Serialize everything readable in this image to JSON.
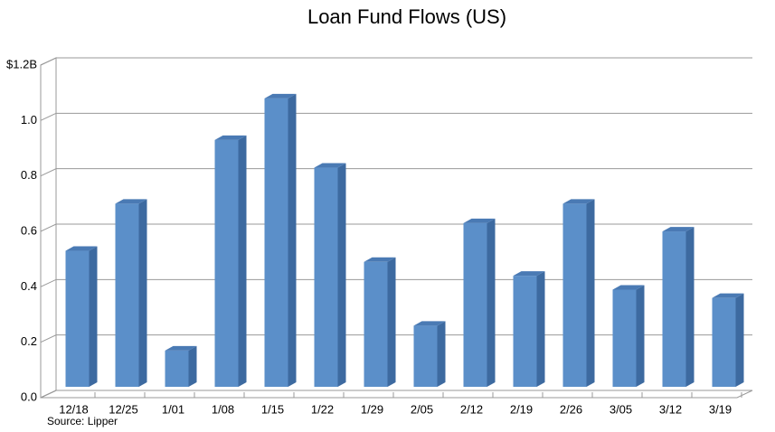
{
  "chart_data": {
    "type": "bar",
    "title": "Loan Fund Flows (US)",
    "categories": [
      "12/18",
      "12/25",
      "1/01",
      "1/08",
      "1/15",
      "1/22",
      "1/29",
      "2/05",
      "2/12",
      "2/19",
      "2/26",
      "3/05",
      "3/12",
      "3/19"
    ],
    "values": [
      0.52,
      0.69,
      0.16,
      0.92,
      1.07,
      0.82,
      0.48,
      0.25,
      0.62,
      0.43,
      0.69,
      0.38,
      0.59,
      0.35
    ],
    "color": "#5b8fc9",
    "ylim": [
      0,
      1.2
    ],
    "yticks": [
      {
        "value": 0,
        "label": "0.0"
      },
      0.2,
      0.4,
      0.6,
      0.8,
      {
        "value": 1,
        "label": "1.0"
      },
      {
        "value": 1.2,
        "label": "$1.2B"
      }
    ],
    "grid": true,
    "annotation": "Source: Lipper"
  }
}
